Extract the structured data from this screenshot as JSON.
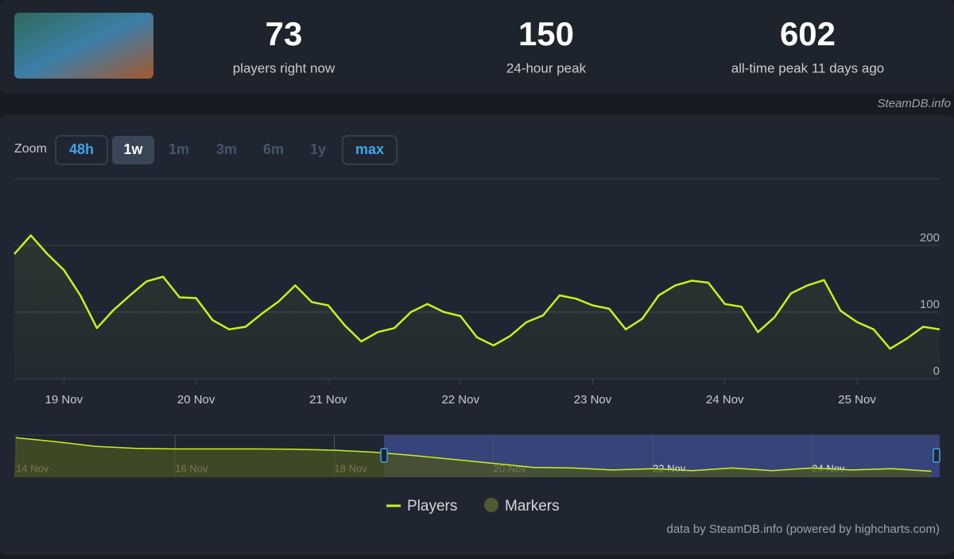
{
  "header": {
    "stats": [
      {
        "value": 73,
        "label": "players right now"
      },
      {
        "value": 150,
        "label": "24-hour peak"
      },
      {
        "value": 602,
        "label": "all-time peak 11 days ago"
      }
    ],
    "watermark": "SteamDB.info"
  },
  "zoom": {
    "label": "Zoom",
    "buttons": [
      "48h",
      "1w",
      "1m",
      "3m",
      "6m",
      "1y",
      "max"
    ],
    "selected": "1w",
    "enabled": [
      "48h",
      "max"
    ]
  },
  "chart_data": [
    {
      "type": "line",
      "categories": [
        null,
        null,
        null,
        "19 Nov",
        null,
        null,
        null,
        null,
        null,
        null,
        null,
        "20 Nov",
        null,
        null,
        null,
        null,
        null,
        null,
        null,
        "21 Nov",
        null,
        null,
        null,
        null,
        null,
        null,
        null,
        "22 Nov",
        null,
        null,
        null,
        null,
        null,
        null,
        null,
        "23 Nov",
        null,
        null,
        null,
        null,
        null,
        null,
        null,
        "24 Nov",
        null,
        null,
        null,
        null,
        null,
        null,
        null,
        "25 Nov",
        null,
        null,
        null,
        null,
        null
      ],
      "series": [
        {
          "name": "Players",
          "color": "#c6f221",
          "values": [
            187,
            215,
            187,
            163,
            125,
            76,
            103,
            125,
            146,
            153,
            122,
            121,
            88,
            74,
            78,
            98,
            116,
            140,
            115,
            110,
            80,
            56,
            70,
            76,
            100,
            112,
            100,
            94,
            62,
            50,
            64,
            85,
            95,
            125,
            120,
            110,
            105,
            74,
            90,
            125,
            140,
            147,
            144,
            112,
            108,
            70,
            92,
            128,
            140,
            148,
            102,
            85,
            74,
            45,
            60,
            78,
            74
          ]
        }
      ],
      "markers": {
        "name": "Markers",
        "color": "#4f5a30"
      },
      "ylim": [
        0,
        300
      ],
      "yticks": [
        0,
        100,
        200
      ],
      "grid": true
    },
    {
      "type": "area",
      "categories": [
        "14 Nov",
        null,
        null,
        null,
        "16 Nov",
        null,
        null,
        null,
        "18 Nov",
        null,
        null,
        null,
        "20 Nov",
        null,
        null,
        null,
        "22 Nov",
        null,
        null,
        null,
        "24 Nov",
        null,
        null,
        null
      ],
      "values": [
        600,
        540,
        470,
        440,
        430,
        430,
        430,
        425,
        410,
        380,
        330,
        270,
        210,
        150,
        140,
        110,
        130,
        100,
        140,
        100,
        140,
        110,
        130,
        90
      ],
      "color": "#c6f221",
      "ylim": [
        0,
        640
      ]
    }
  ],
  "credit": "data by SteamDB.info (powered by highcharts.com)"
}
